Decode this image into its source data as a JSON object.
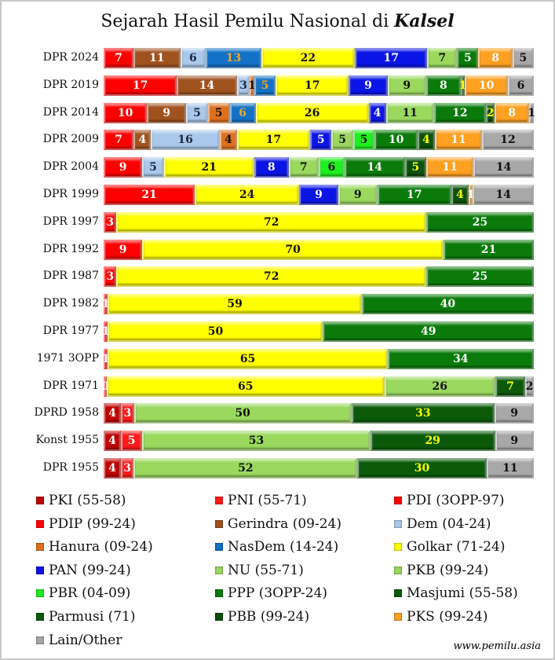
{
  "chart_data": {
    "type": "bar",
    "orientation": "horizontal-stacked-100",
    "title": "Sejarah Hasil Pemilu Nasional di",
    "title_emphasis": "Kalsel",
    "credit": "www.pemilu.asia",
    "legend_position": "bottom",
    "parties": [
      {
        "name": "PKI (55-58)",
        "key": "PKI",
        "color": "#c00000",
        "text": "#ffffff"
      },
      {
        "name": "PNI (55-71)",
        "key": "PNI",
        "color": "#ff1a1a",
        "text": "#ffffff"
      },
      {
        "name": "PDI (3OPP-97)",
        "key": "PDI",
        "color": "#ff0000",
        "text": "#ffffff"
      },
      {
        "name": "PDIP (99-24)",
        "key": "PDIP",
        "color": "#ff0000",
        "text": "#ffffff"
      },
      {
        "name": "Gerindra (09-24)",
        "key": "Gerindra",
        "color": "#a0521e",
        "text": "#ffffff"
      },
      {
        "name": "Dem (04-24)",
        "key": "Dem",
        "color": "#a9c8ec",
        "text": "#1a2a40"
      },
      {
        "name": "Hanura (09-24)",
        "key": "Hanura",
        "color": "#e0701c",
        "text": "#111111"
      },
      {
        "name": "NasDem (14-24)",
        "key": "NasDem",
        "color": "#1272c8",
        "text": "#f5a623"
      },
      {
        "name": "Golkar (71-24)",
        "key": "Golkar",
        "color": "#ffff00",
        "text": "#111111"
      },
      {
        "name": "PAN (99-24)",
        "key": "PAN",
        "color": "#0a14e6",
        "text": "#ffffff"
      },
      {
        "name": "NU (55-71)",
        "key": "NU",
        "color": "#9ad95e",
        "text": "#111111"
      },
      {
        "name": "PKB (99-24)",
        "key": "PKB",
        "color": "#9ad95e",
        "text": "#111111"
      },
      {
        "name": "PBR (04-09)",
        "key": "PBR",
        "color": "#1ef01e",
        "text": "#111111"
      },
      {
        "name": "PPP (3OPP-24)",
        "key": "PPP",
        "color": "#0a7a0a",
        "text": "#ffffff"
      },
      {
        "name": "Masjumi (55-58)",
        "key": "Masjumi",
        "color": "#0a5a0a",
        "text": "#ffff00"
      },
      {
        "name": "Parmusi (71)",
        "key": "Parmusi",
        "color": "#0a5a0a",
        "text": "#ffff00"
      },
      {
        "name": "PBB (99-24)",
        "key": "PBB",
        "color": "#0a500a",
        "text": "#ffff00"
      },
      {
        "name": "PKS (99-24)",
        "key": "PKS",
        "color": "#ffa020",
        "text": "#ffffff"
      },
      {
        "name": "Lain/Other",
        "key": "Other",
        "color": "#a8a8a8",
        "text": "#111111"
      }
    ],
    "categories": [
      "DPR 2024",
      "DPR 2019",
      "DPR 2014",
      "DPR 2009",
      "DPR 2004",
      "DPR 1999",
      "DPR 1997",
      "DPR 1992",
      "DPR 1987",
      "DPR 1982",
      "DPR 1977",
      "1971 3OPP",
      "DPR 1971",
      "DPRD 1958",
      "Konst 1955",
      "DPR 1955"
    ],
    "rows": [
      [
        [
          "PDIP",
          7
        ],
        [
          "Gerindra",
          11
        ],
        [
          "Dem",
          6
        ],
        [
          "NasDem",
          13
        ],
        [
          "Golkar",
          22
        ],
        [
          "PAN",
          17
        ],
        [
          "PKB",
          7
        ],
        [
          "PPP",
          5
        ],
        [
          "PKS",
          8
        ],
        [
          "Other",
          5
        ]
      ],
      [
        [
          "PDIP",
          17
        ],
        [
          "Gerindra",
          14
        ],
        [
          "Dem",
          3
        ],
        [
          "Hanura",
          1
        ],
        [
          "NasDem",
          5
        ],
        [
          "Golkar",
          17
        ],
        [
          "PAN",
          9
        ],
        [
          "PKB",
          9
        ],
        [
          "PPP",
          8
        ],
        [
          "PBB",
          1
        ],
        [
          "PKS",
          10
        ],
        [
          "Other",
          6
        ]
      ],
      [
        [
          "PDIP",
          10
        ],
        [
          "Gerindra",
          9
        ],
        [
          "Dem",
          5
        ],
        [
          "Hanura",
          5
        ],
        [
          "NasDem",
          6
        ],
        [
          "Golkar",
          26
        ],
        [
          "PAN",
          4
        ],
        [
          "PKB",
          11
        ],
        [
          "PPP",
          12
        ],
        [
          "PBB",
          2
        ],
        [
          "PKS",
          8
        ],
        [
          "Other",
          1
        ]
      ],
      [
        [
          "PDIP",
          7
        ],
        [
          "Gerindra",
          4
        ],
        [
          "Dem",
          16
        ],
        [
          "Hanura",
          4
        ],
        [
          "Golkar",
          17
        ],
        [
          "PAN",
          5
        ],
        [
          "PKB",
          5
        ],
        [
          "PBR",
          5
        ],
        [
          "PPP",
          10
        ],
        [
          "PBB",
          4
        ],
        [
          "PKS",
          11
        ],
        [
          "Other",
          12
        ]
      ],
      [
        [
          "PDIP",
          9
        ],
        [
          "Dem",
          5
        ],
        [
          "Golkar",
          21
        ],
        [
          "PAN",
          8
        ],
        [
          "PKB",
          7
        ],
        [
          "PBR",
          6
        ],
        [
          "PPP",
          14
        ],
        [
          "PBB",
          5
        ],
        [
          "PKS",
          11
        ],
        [
          "Other",
          14
        ]
      ],
      [
        [
          "PDIP",
          21
        ],
        [
          "Golkar",
          24
        ],
        [
          "PAN",
          9
        ],
        [
          "PKB",
          9
        ],
        [
          "PPP",
          17
        ],
        [
          "PBB",
          4
        ],
        [
          "PKS",
          1
        ],
        [
          "Other",
          14
        ]
      ],
      [
        [
          "PDI",
          3
        ],
        [
          "Golkar",
          72
        ],
        [
          "PPP",
          25
        ]
      ],
      [
        [
          "PDI",
          9
        ],
        [
          "Golkar",
          70
        ],
        [
          "PPP",
          21
        ]
      ],
      [
        [
          "PDI",
          3
        ],
        [
          "Golkar",
          72
        ],
        [
          "PPP",
          25
        ]
      ],
      [
        [
          "PDI",
          1
        ],
        [
          "Golkar",
          59
        ],
        [
          "PPP",
          40
        ]
      ],
      [
        [
          "PDI",
          1
        ],
        [
          "Golkar",
          50
        ],
        [
          "PPP",
          49
        ]
      ],
      [
        [
          "PDI",
          1
        ],
        [
          "Golkar",
          65
        ],
        [
          "PPP",
          34
        ]
      ],
      [
        [
          "PNI",
          0
        ],
        [
          "Golkar",
          65
        ],
        [
          "NU",
          26
        ],
        [
          "Parmusi",
          7
        ],
        [
          "Other",
          2
        ]
      ],
      [
        [
          "PKI",
          4
        ],
        [
          "PNI",
          3
        ],
        [
          "NU",
          50
        ],
        [
          "Masjumi",
          33
        ],
        [
          "Other",
          9
        ]
      ],
      [
        [
          "PKI",
          4
        ],
        [
          "PNI",
          5
        ],
        [
          "NU",
          53
        ],
        [
          "Masjumi",
          29
        ],
        [
          "Other",
          9
        ]
      ],
      [
        [
          "PKI",
          4
        ],
        [
          "PNI",
          3
        ],
        [
          "NU",
          52
        ],
        [
          "Masjumi",
          30
        ],
        [
          "Other",
          11
        ]
      ]
    ]
  }
}
